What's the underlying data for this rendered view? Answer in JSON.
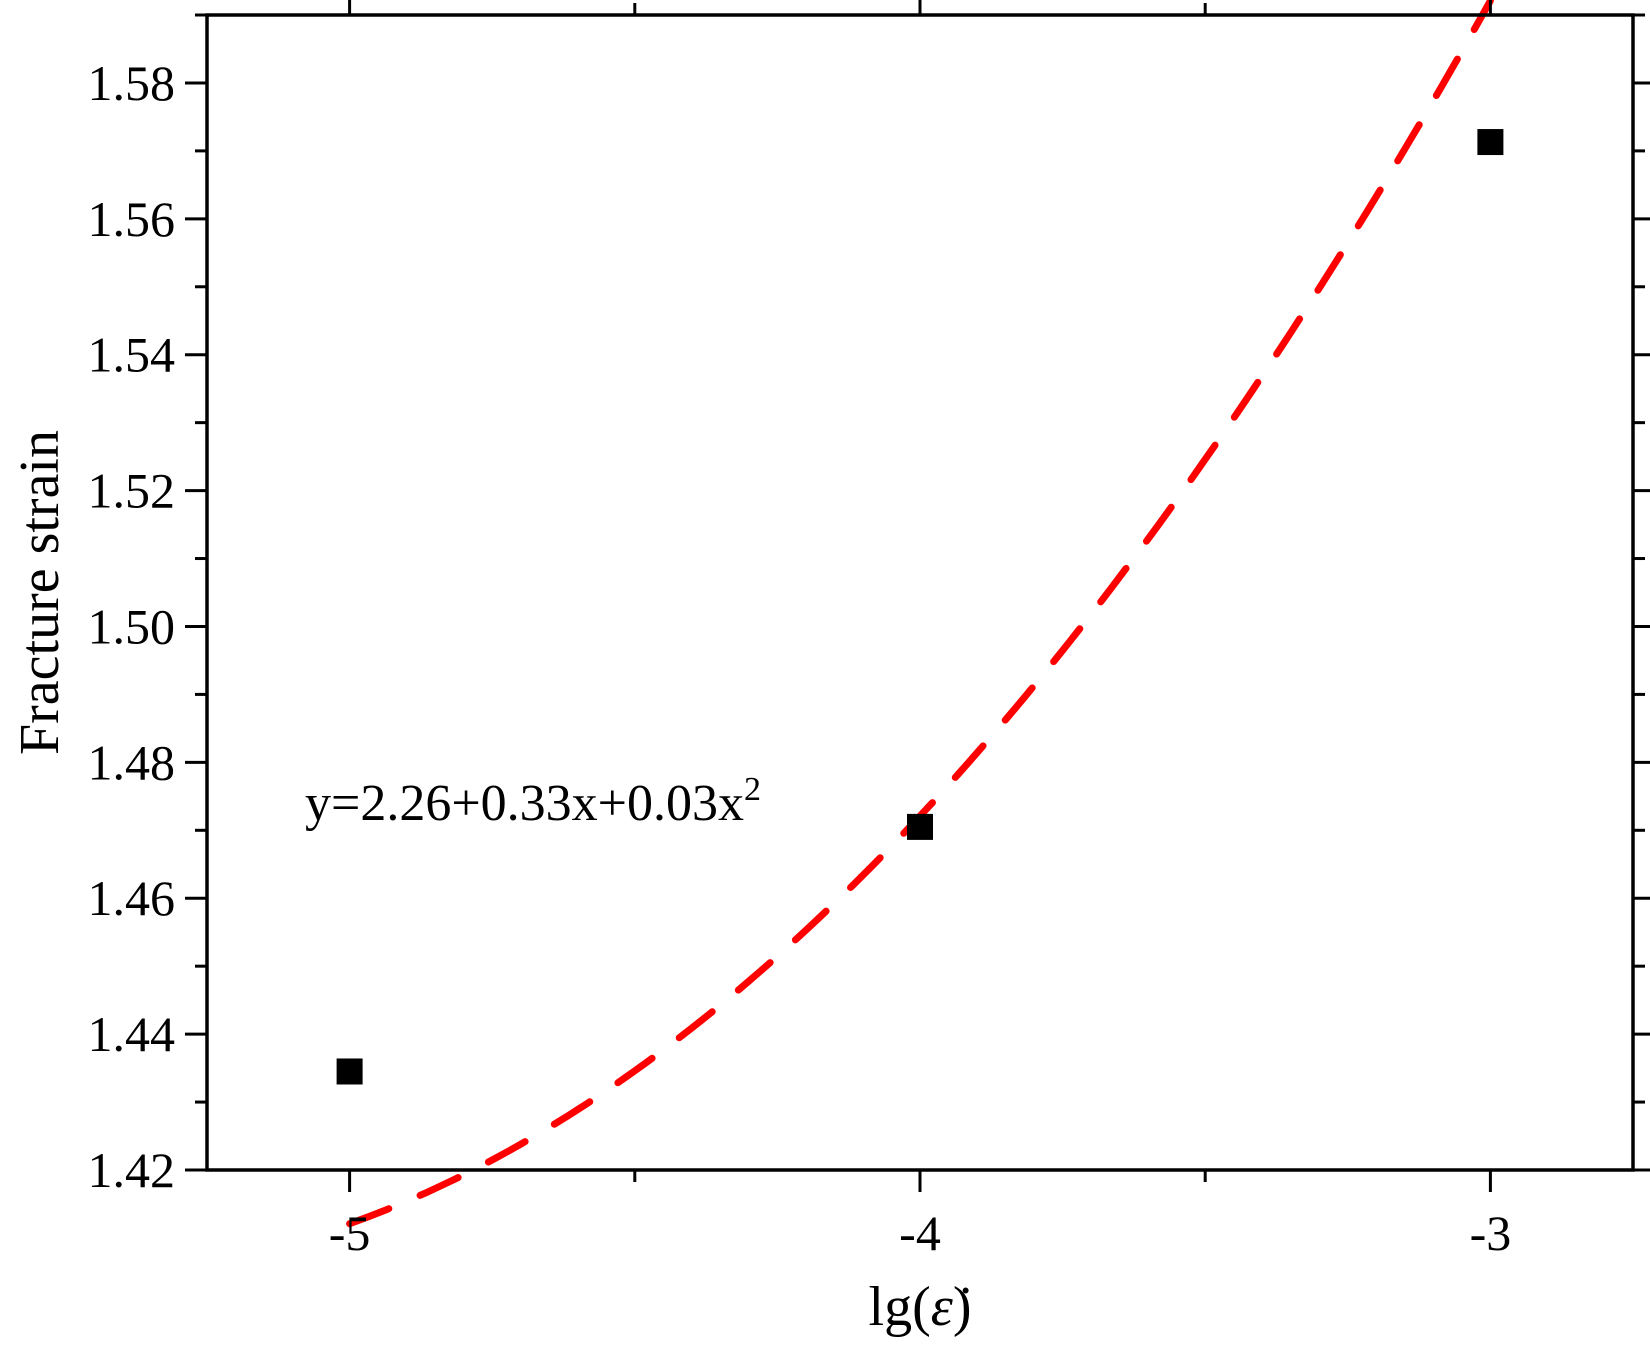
{
  "chart_data": {
    "type": "scatter",
    "title": "",
    "xlabel": "lg(ε̇)",
    "ylabel": "Fracture strain",
    "xlim": [
      -5.25,
      -2.75
    ],
    "ylim": [
      1.42,
      1.59
    ],
    "x_ticks": [
      -5,
      -4,
      -3
    ],
    "x_tick_labels": [
      "-5",
      "-4",
      "-3"
    ],
    "y_ticks": [
      1.42,
      1.44,
      1.46,
      1.48,
      1.5,
      1.52,
      1.54,
      1.56,
      1.58
    ],
    "y_tick_labels": [
      "1.42",
      "1.44",
      "1.46",
      "1.48",
      "1.50",
      "1.52",
      "1.54",
      "1.56",
      "1.58"
    ],
    "grid": false,
    "legend": "none",
    "series": [
      {
        "kind": "markers",
        "marker": "square",
        "color": "#000000",
        "x": [
          -5,
          -4,
          -3
        ],
        "y": [
          1.4345,
          1.4705,
          1.5713
        ]
      },
      {
        "kind": "fit",
        "style": "dashed",
        "color": "#ff0000",
        "coefficients": [
          2.26,
          0.33,
          0.03
        ],
        "x_range": [
          -5,
          -3
        ]
      }
    ],
    "annotations": [
      {
        "text_main": "y=2.26+0.33x+0.03x",
        "text_sup": "2",
        "x": -4.4,
        "y": 1.475
      }
    ]
  }
}
